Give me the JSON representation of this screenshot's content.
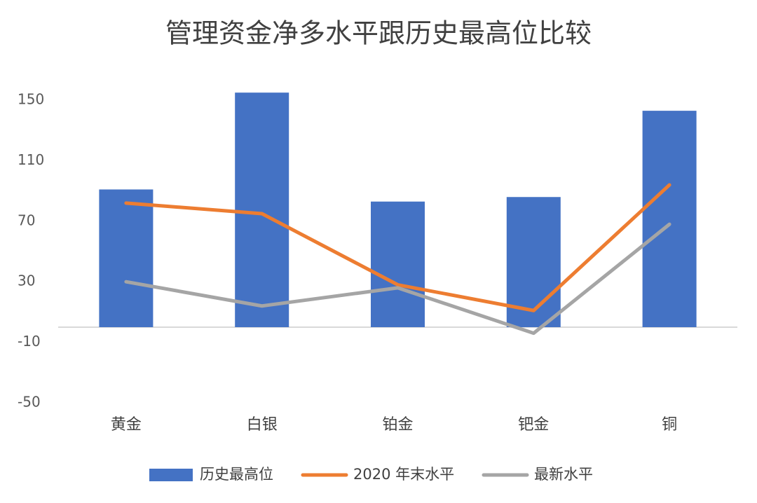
{
  "chart_data": {
    "type": "bar",
    "title": "管理资金净多水平跟历史最高位比较",
    "categories": [
      "黄金",
      "白银",
      "铂金",
      "钯金",
      "铜"
    ],
    "series": [
      {
        "name": "历史最高位",
        "type": "bar",
        "color": "#4472c4",
        "values": [
          91,
          155,
          83,
          86,
          143
        ]
      },
      {
        "name": "2020 年末水平",
        "type": "line",
        "color": "#ed7d31",
        "values": [
          82,
          75,
          28,
          11,
          94
        ]
      },
      {
        "name": "最新水平",
        "type": "line",
        "color": "#a5a5a5",
        "values": [
          30,
          14,
          26,
          -4,
          68
        ]
      }
    ],
    "ylim": [
      -50,
      150
    ],
    "yticks": [
      -50,
      -10,
      30,
      70,
      110,
      150
    ],
    "grid": false,
    "legend": "bottom"
  }
}
